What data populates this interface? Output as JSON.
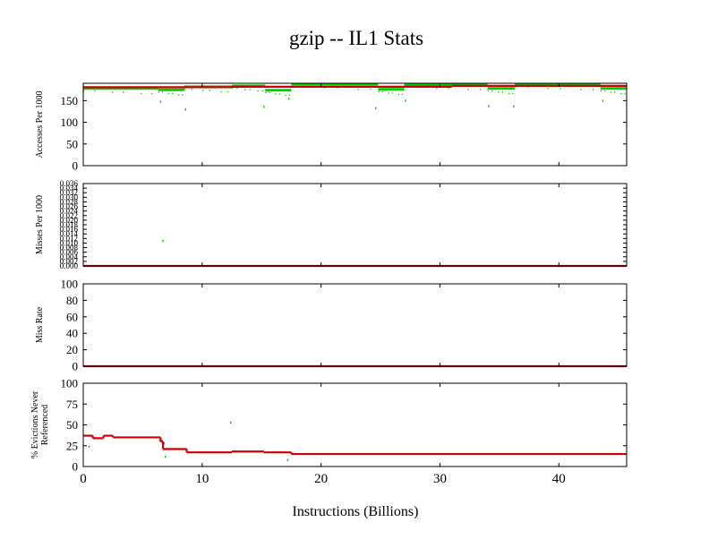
{
  "chart_data": {
    "type": "line",
    "title": "gzip -- IL1  Stats",
    "xlabel": "Instructions (Billions)",
    "xlim": [
      0,
      45.7
    ],
    "xticks": [
      "0",
      "10",
      "20",
      "30",
      "40"
    ],
    "xtick_values": [
      0,
      10,
      20,
      30,
      40
    ],
    "colors": {
      "sample": "#00cc00",
      "average": "#cc0000",
      "axis": "#000000"
    },
    "panels": [
      {
        "ylabel": "Accesses Per 1000",
        "ylim": [
          0,
          190
        ],
        "yticks": [
          "0",
          "50",
          "100",
          "150"
        ],
        "ytick_values": [
          0,
          50,
          100,
          150
        ],
        "samples": [
          {
            "x": [
              0,
              6.3
            ],
            "y": 178
          },
          {
            "x": [
              6.3,
              8.5
            ],
            "y": 175
          },
          {
            "x": [
              8.5,
              12.5
            ],
            "y": 182
          },
          {
            "x": [
              12.5,
              15.3
            ],
            "y": 184
          },
          {
            "x": [
              15.3,
              17.5
            ],
            "y": 174
          },
          {
            "x": [
              17.5,
              24.8
            ],
            "y": 188
          },
          {
            "x": [
              24.8,
              27
            ],
            "y": 176
          },
          {
            "x": [
              27,
              34
            ],
            "y": 187
          },
          {
            "x": [
              34,
              36.3
            ],
            "y": 178
          },
          {
            "x": [
              36.3,
              43.5
            ],
            "y": 187
          },
          {
            "x": [
              43.5,
              45.7
            ],
            "y": 178
          }
        ],
        "outliers": [
          [
            6.5,
            148
          ],
          [
            8.6,
            130
          ],
          [
            15.2,
            136
          ],
          [
            17.3,
            155
          ],
          [
            24.6,
            133
          ],
          [
            27.1,
            150
          ],
          [
            34.1,
            138
          ],
          [
            36.2,
            137
          ],
          [
            43.7,
            150
          ]
        ],
        "average": [
          {
            "x": [
              0,
              12.5
            ],
            "y": 181
          },
          {
            "x": [
              12.5,
              31
            ],
            "y": 182
          },
          {
            "x": [
              31,
              45.7
            ],
            "y": 184
          }
        ]
      },
      {
        "ylabel": "Misses Per 1000",
        "ylim": [
          0,
          0.036
        ],
        "yticks": [
          "0.000",
          "0.002",
          "0.004",
          "0.006",
          "0.008",
          "0.010",
          "0.012",
          "0.014",
          "0.016",
          "0.018",
          "0.020",
          "0.022",
          "0.024",
          "0.026",
          "0.028",
          "0.030",
          "0.032",
          "0.034",
          "0.036"
        ],
        "ytick_values": [
          0,
          0.002,
          0.004,
          0.006,
          0.008,
          0.01,
          0.012,
          0.014,
          0.016,
          0.018,
          0.02,
          0.022,
          0.024,
          0.026,
          0.028,
          0.03,
          0.032,
          0.034,
          0.036
        ],
        "samples": [],
        "outliers": [
          [
            6.7,
            0.011
          ]
        ],
        "average": [
          {
            "x": [
              0,
              45.7
            ],
            "y": 0
          }
        ]
      },
      {
        "ylabel": "Miss Rate",
        "ylim": [
          0,
          100
        ],
        "yticks": [
          "0",
          "20",
          "40",
          "60",
          "80",
          "100"
        ],
        "ytick_values": [
          0,
          20,
          40,
          60,
          80,
          100
        ],
        "samples": [],
        "outliers": [],
        "average": [
          {
            "x": [
              0,
              45.7
            ],
            "y": 0
          }
        ]
      },
      {
        "ylabel": "% Evictions Never Referenced",
        "ylim": [
          0,
          100
        ],
        "yticks": [
          "0",
          "25",
          "50",
          "75",
          "100"
        ],
        "ytick_values": [
          0,
          25,
          50,
          75,
          100
        ],
        "samples": [],
        "outliers": [
          [
            0.5,
            24
          ],
          [
            6.6,
            32
          ],
          [
            6.8,
            28
          ],
          [
            6.9,
            12
          ],
          [
            12.4,
            53
          ],
          [
            17.2,
            8
          ]
        ],
        "average": [
          {
            "x": [
              0,
              0.8
            ],
            "y": 37
          },
          {
            "x": [
              0.8,
              1.7
            ],
            "y": 34
          },
          {
            "x": [
              1.7,
              2.5
            ],
            "y": 37
          },
          {
            "x": [
              2.5,
              6.5
            ],
            "y": 35
          },
          {
            "x": [
              6.5,
              6.7
            ],
            "y": 30
          },
          {
            "x": [
              6.7,
              8.7
            ],
            "y": 21
          },
          {
            "x": [
              8.7,
              12.5
            ],
            "y": 17
          },
          {
            "x": [
              12.5,
              15.2
            ],
            "y": 18
          },
          {
            "x": [
              15.2,
              17.5
            ],
            "y": 17
          },
          {
            "x": [
              17.5,
              45.7
            ],
            "y": 15
          }
        ]
      }
    ]
  }
}
